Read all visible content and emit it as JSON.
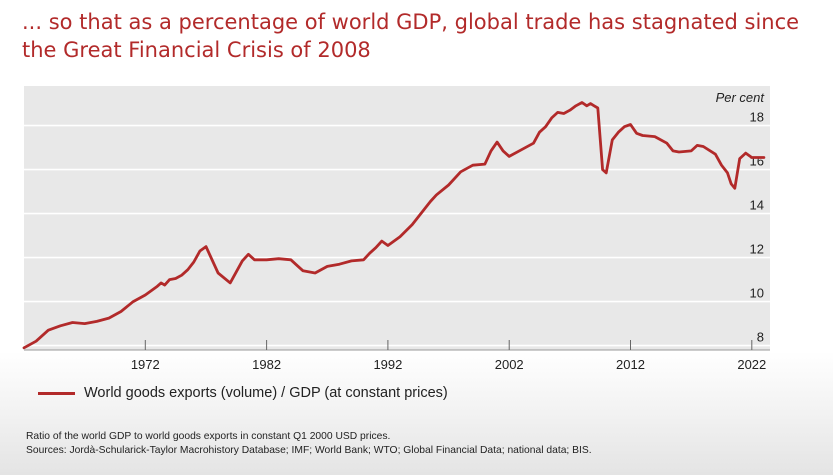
{
  "headline": "... so that as a percentage of world GDP, global trade has stagnated since the Great Financial Crisis of 2008",
  "notes": {
    "line1": "Ratio of the world GDP to world goods exports in constant Q1 2000 USD prices.",
    "line2": "Sources: Jordà-Schularick-Taylor Macrohistory Database; IMF; World Bank; WTO; Global Financial Data; national data; BIS."
  },
  "colors": {
    "series": "#b22a2a",
    "plot_bg": "#e8e8e8",
    "grid": "#ffffff",
    "headline": "#b22a2a"
  },
  "chart_data": {
    "type": "line",
    "title": "",
    "xlabel": "",
    "ylabel": "Per cent",
    "ylabel_position": "top-right",
    "xlim": [
      1962,
      2023.5
    ],
    "ylim": [
      7.8,
      19.8
    ],
    "x_ticks": [
      1972,
      1982,
      1992,
      2002,
      2012,
      2022
    ],
    "y_ticks": [
      8,
      10,
      12,
      14,
      16,
      18
    ],
    "grid": "horizontal",
    "legend_position": "bottom-left",
    "series": [
      {
        "name": "World goods exports (volume) / GDP (at constant prices)",
        "x": [
          1962,
          1963,
          1964,
          1965,
          1966,
          1967,
          1968,
          1969,
          1970,
          1971,
          1972,
          1973,
          1973.3,
          1973.6,
          1974,
          1974.5,
          1975,
          1975.5,
          1976,
          1976.5,
          1977,
          1978,
          1979,
          1980,
          1980.5,
          1981,
          1982,
          1983,
          1984,
          1984.5,
          1985,
          1986,
          1987,
          1988,
          1989,
          1990,
          1990.5,
          1991,
          1991.5,
          1992,
          1993,
          1994,
          1995,
          1995.5,
          1996,
          1997,
          1998,
          1999,
          2000,
          2000.5,
          2001,
          2001.5,
          2002,
          2003,
          2004,
          2004.5,
          2005,
          2005.5,
          2006,
          2006.5,
          2007,
          2007.5,
          2008,
          2008.4,
          2008.7,
          2009,
          2009.3,
          2009.7,
          2010,
          2010.5,
          2011,
          2011.5,
          2012,
          2012.5,
          2013,
          2014,
          2015,
          2015.5,
          2016,
          2017,
          2017.5,
          2018,
          2019,
          2019.5,
          2020,
          2020.3,
          2020.6,
          2021,
          2021.5,
          2022,
          2023
        ],
        "y": [
          7.9,
          8.2,
          8.7,
          8.9,
          9.05,
          9.0,
          9.1,
          9.25,
          9.55,
          10.0,
          10.3,
          10.7,
          10.85,
          10.75,
          11.0,
          11.05,
          11.2,
          11.45,
          11.8,
          12.3,
          12.5,
          11.3,
          10.85,
          11.85,
          12.15,
          11.9,
          11.9,
          11.95,
          11.9,
          11.65,
          11.4,
          11.3,
          11.6,
          11.7,
          11.85,
          11.9,
          12.2,
          12.45,
          12.75,
          12.55,
          12.95,
          13.5,
          14.2,
          14.55,
          14.85,
          15.3,
          15.9,
          16.2,
          16.25,
          16.85,
          17.25,
          16.85,
          16.6,
          16.9,
          17.2,
          17.7,
          17.95,
          18.35,
          18.6,
          18.55,
          18.7,
          18.9,
          19.05,
          18.9,
          19.0,
          18.9,
          18.8,
          16.0,
          15.85,
          17.35,
          17.7,
          17.95,
          18.05,
          17.65,
          17.55,
          17.5,
          17.2,
          16.85,
          16.8,
          16.85,
          17.1,
          17.05,
          16.7,
          16.2,
          15.85,
          15.35,
          15.15,
          16.5,
          16.75,
          16.55,
          16.55
        ]
      }
    ]
  }
}
